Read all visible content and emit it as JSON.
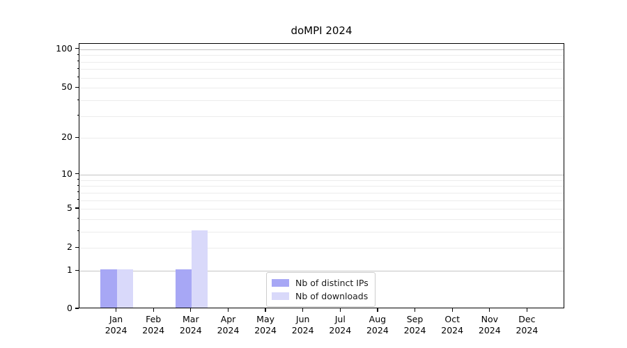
{
  "chart_data": {
    "type": "bar",
    "title": "doMPI 2024",
    "categories": [
      "Jan",
      "Feb",
      "Mar",
      "Apr",
      "May",
      "Jun",
      "Jul",
      "Aug",
      "Sep",
      "Oct",
      "Nov",
      "Dec"
    ],
    "year_label": "2024",
    "series": [
      {
        "name": "Nb of distinct IPs",
        "color": "#a7a7f5",
        "values": [
          1,
          0,
          1,
          0,
          0,
          0,
          0,
          0,
          0,
          0,
          0,
          0
        ]
      },
      {
        "name": "Nb of downloads",
        "color": "#d9d9fa",
        "values": [
          1,
          0,
          3,
          0,
          0,
          0,
          0,
          0,
          0,
          0,
          0,
          0
        ]
      }
    ],
    "yscale": "log1p",
    "ytick_labels": [
      "100",
      "50",
      "20",
      "10",
      "5",
      "2",
      "1",
      "0"
    ],
    "ylim": [
      0,
      110
    ],
    "grid": "horizontal",
    "legend_position": "inside-bottom-center"
  }
}
